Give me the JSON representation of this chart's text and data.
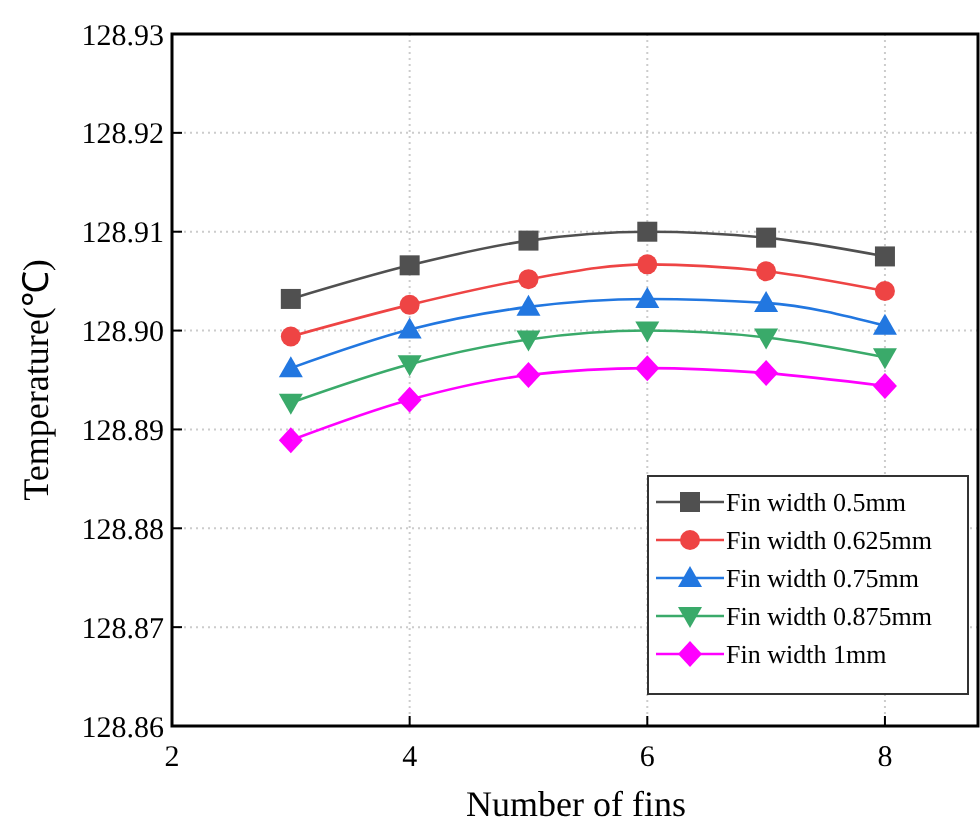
{
  "chart_data": {
    "type": "line",
    "xlabel": "Number of fins",
    "ylabel": "Temperature(℃)",
    "x": [
      3,
      4,
      5,
      6,
      7,
      8
    ],
    "xlim": [
      2,
      8.8
    ],
    "xticks": [
      2,
      4,
      6,
      8
    ],
    "ylim": [
      128.86,
      128.93
    ],
    "yticks": [
      128.86,
      128.87,
      128.88,
      128.89,
      {
        "value": 128.9,
        "label": "128.90"
      },
      128.91,
      128.92,
      128.93
    ],
    "grid": true,
    "legend": "bottom right",
    "line_style": "solid",
    "series": [
      {
        "name": "Fin width 0.5mm",
        "color": "#505050",
        "marker": "square",
        "values": [
          128.9032,
          128.9066,
          128.9091,
          128.91,
          128.9094,
          128.9075
        ]
      },
      {
        "name": "Fin width 0.625mm",
        "color": "#ee4444",
        "marker": "circle",
        "values": [
          128.8994,
          128.9026,
          128.9052,
          128.9067,
          128.906,
          128.904
        ]
      },
      {
        "name": "Fin width 0.75mm",
        "color": "#2277e0",
        "marker": "triangle",
        "values": [
          128.8962,
          128.9001,
          128.9024,
          128.9032,
          128.9028,
          128.9005
        ]
      },
      {
        "name": "Fin width 0.875mm",
        "color": "#3aaa6a",
        "marker": "triangle-down",
        "values": [
          128.8927,
          128.8966,
          128.8991,
          128.9,
          128.8993,
          128.8973
        ]
      },
      {
        "name": "Fin width 1mm",
        "color": "#ff00ff",
        "marker": "diamond",
        "values": [
          128.8889,
          128.893,
          128.8955,
          128.8962,
          128.8957,
          128.8944
        ]
      }
    ]
  }
}
